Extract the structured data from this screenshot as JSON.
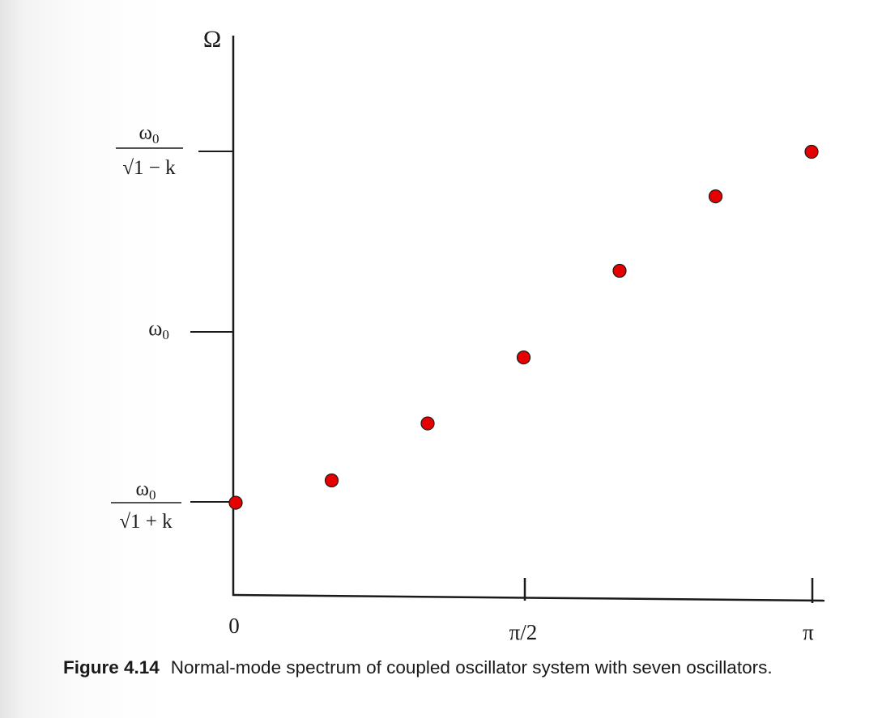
{
  "chart_data": {
    "type": "scatter",
    "ylabel": "Ω",
    "xlim": [
      0,
      3.14159
    ],
    "ylim": [
      0.58,
      1.52
    ],
    "x_ticks": [
      {
        "value": 0,
        "label": "0"
      },
      {
        "value": 1.5708,
        "label": "π/2"
      },
      {
        "value": 3.14159,
        "label": "π"
      }
    ],
    "y_ticks": [
      {
        "value": 0.7071,
        "num": "ω",
        "sub": "0",
        "den": "√1 + k"
      },
      {
        "value": 1.0,
        "label": "ω",
        "sub": "0"
      },
      {
        "value": 1.4142,
        "num": "ω",
        "sub": "0",
        "den": "√1 − k"
      }
    ],
    "point_color": "#e60000",
    "series": [
      {
        "x": [
          0,
          0.5236,
          1.0472,
          1.5708,
          2.0944,
          2.618,
          3.1416
        ],
        "y": [
          0.707,
          0.752,
          0.867,
          1.0,
          1.175,
          1.325,
          1.415
        ]
      }
    ]
  },
  "caption": {
    "label": "Figure 4.14",
    "text": "Normal-mode spectrum of coupled oscillator system with seven oscillators."
  }
}
